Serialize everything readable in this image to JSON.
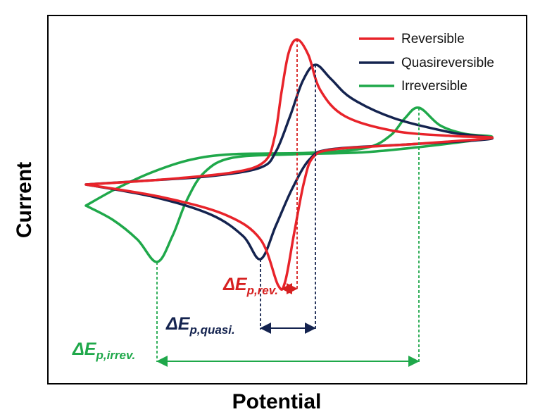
{
  "axis_labels": {
    "x": "Potential",
    "y": "Current"
  },
  "legend": [
    "Reversible",
    "Quasireversible",
    "Irreversible"
  ],
  "annotations": [
    {
      "symbol": "ΔE",
      "subscript": "p,rev."
    },
    {
      "symbol": "ΔE",
      "subscript": "p,quasi."
    },
    {
      "symbol": "ΔE",
      "subscript": "p,irrev."
    }
  ]
}
